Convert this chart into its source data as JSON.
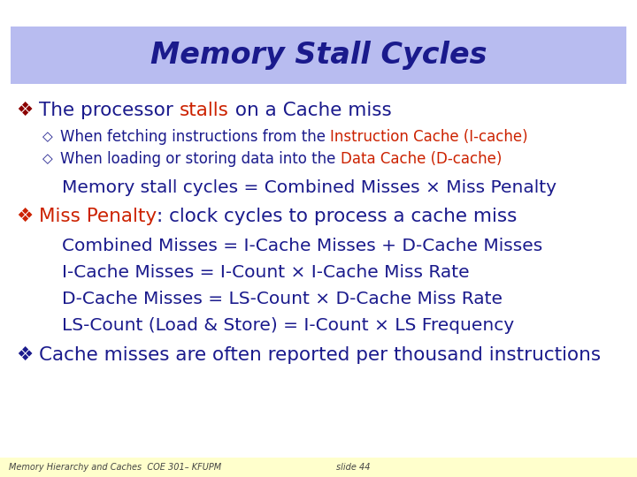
{
  "title": "Memory Stall Cycles",
  "title_color": "#1a1a8c",
  "title_bg_color": "#b8bcf0",
  "body_bg_color": "#ffffff",
  "footer_bg_color": "#ffffcc",
  "footer_left": "Memory Hierarchy and Caches  COE 301– KFUPM",
  "footer_right": "slide 44",
  "lines": [
    {
      "type": "bullet",
      "level": 0,
      "bullet_color": "#8b0000",
      "segments": [
        {
          "text": "The processor ",
          "color": "#1a1a8c"
        },
        {
          "text": "stalls",
          "color": "#cc2200"
        },
        {
          "text": " on a Cache miss",
          "color": "#1a1a8c"
        }
      ]
    },
    {
      "type": "sub_bullet",
      "level": 1,
      "segments": [
        {
          "text": "When fetching instructions from the ",
          "color": "#1a1a8c"
        },
        {
          "text": "Instruction Cache (I-cache)",
          "color": "#cc2200"
        }
      ]
    },
    {
      "type": "sub_bullet",
      "level": 1,
      "segments": [
        {
          "text": "When loading or storing data into the ",
          "color": "#1a1a8c"
        },
        {
          "text": "Data Cache (D-cache)",
          "color": "#cc2200"
        }
      ]
    },
    {
      "type": "formula",
      "level": 1,
      "segments": [
        {
          "text": "Memory stall cycles = Combined Misses × Miss Penalty",
          "color": "#1a1a8c"
        }
      ]
    },
    {
      "type": "bullet",
      "level": 0,
      "bullet_color": "#cc2200",
      "segments": [
        {
          "text": "Miss Penalty",
          "color": "#cc2200"
        },
        {
          "text": ": clock cycles to process a cache miss",
          "color": "#1a1a8c"
        }
      ]
    },
    {
      "type": "formula",
      "level": 1,
      "segments": [
        {
          "text": "Combined Misses = I-Cache Misses + D-Cache Misses",
          "color": "#1a1a8c"
        }
      ]
    },
    {
      "type": "formula",
      "level": 1,
      "segments": [
        {
          "text": "I-Cache Misses = I-Count × I-Cache Miss Rate",
          "color": "#1a1a8c"
        }
      ]
    },
    {
      "type": "formula",
      "level": 1,
      "segments": [
        {
          "text": "D-Cache Misses = LS-Count × D-Cache Miss Rate",
          "color": "#1a1a8c"
        }
      ]
    },
    {
      "type": "formula",
      "level": 1,
      "segments": [
        {
          "text": "LS-Count (Load & Store) = I-Count × LS Frequency",
          "color": "#1a1a8c"
        }
      ]
    },
    {
      "type": "bullet",
      "level": 0,
      "bullet_color": "#1a1a8c",
      "segments": [
        {
          "text": "Cache misses are often reported per thousand instructions",
          "color": "#1a1a8c"
        }
      ]
    }
  ]
}
